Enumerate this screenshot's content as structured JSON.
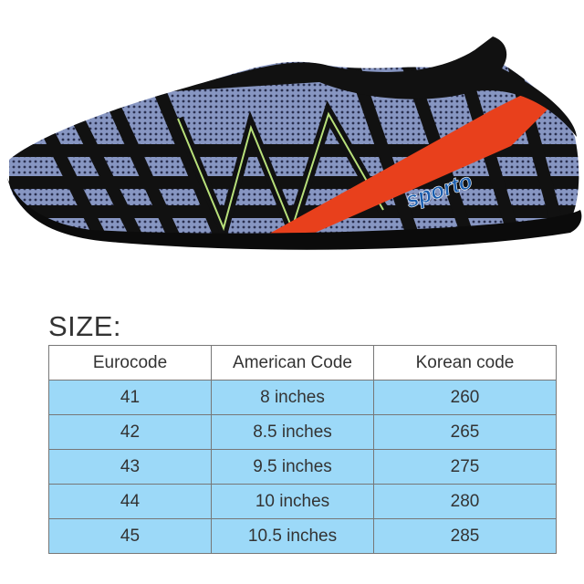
{
  "product": {
    "brand_logo": "sporto",
    "colors": {
      "mesh": "#7f8fb8",
      "stripe": "#111111",
      "accent": "#e8401c",
      "piping": "#b8e07a"
    }
  },
  "size_chart": {
    "title": "SIZE:",
    "headers": [
      "Eurocode",
      "American Code",
      "Korean code"
    ],
    "rows": [
      [
        "41",
        "8 inches",
        "260"
      ],
      [
        "42",
        "8.5 inches",
        "265"
      ],
      [
        "43",
        "9.5 inches",
        "275"
      ],
      [
        "44",
        "10 inches",
        "280"
      ],
      [
        "45",
        "10.5 inches",
        "285"
      ]
    ],
    "row_color": "#9cd9f8"
  }
}
